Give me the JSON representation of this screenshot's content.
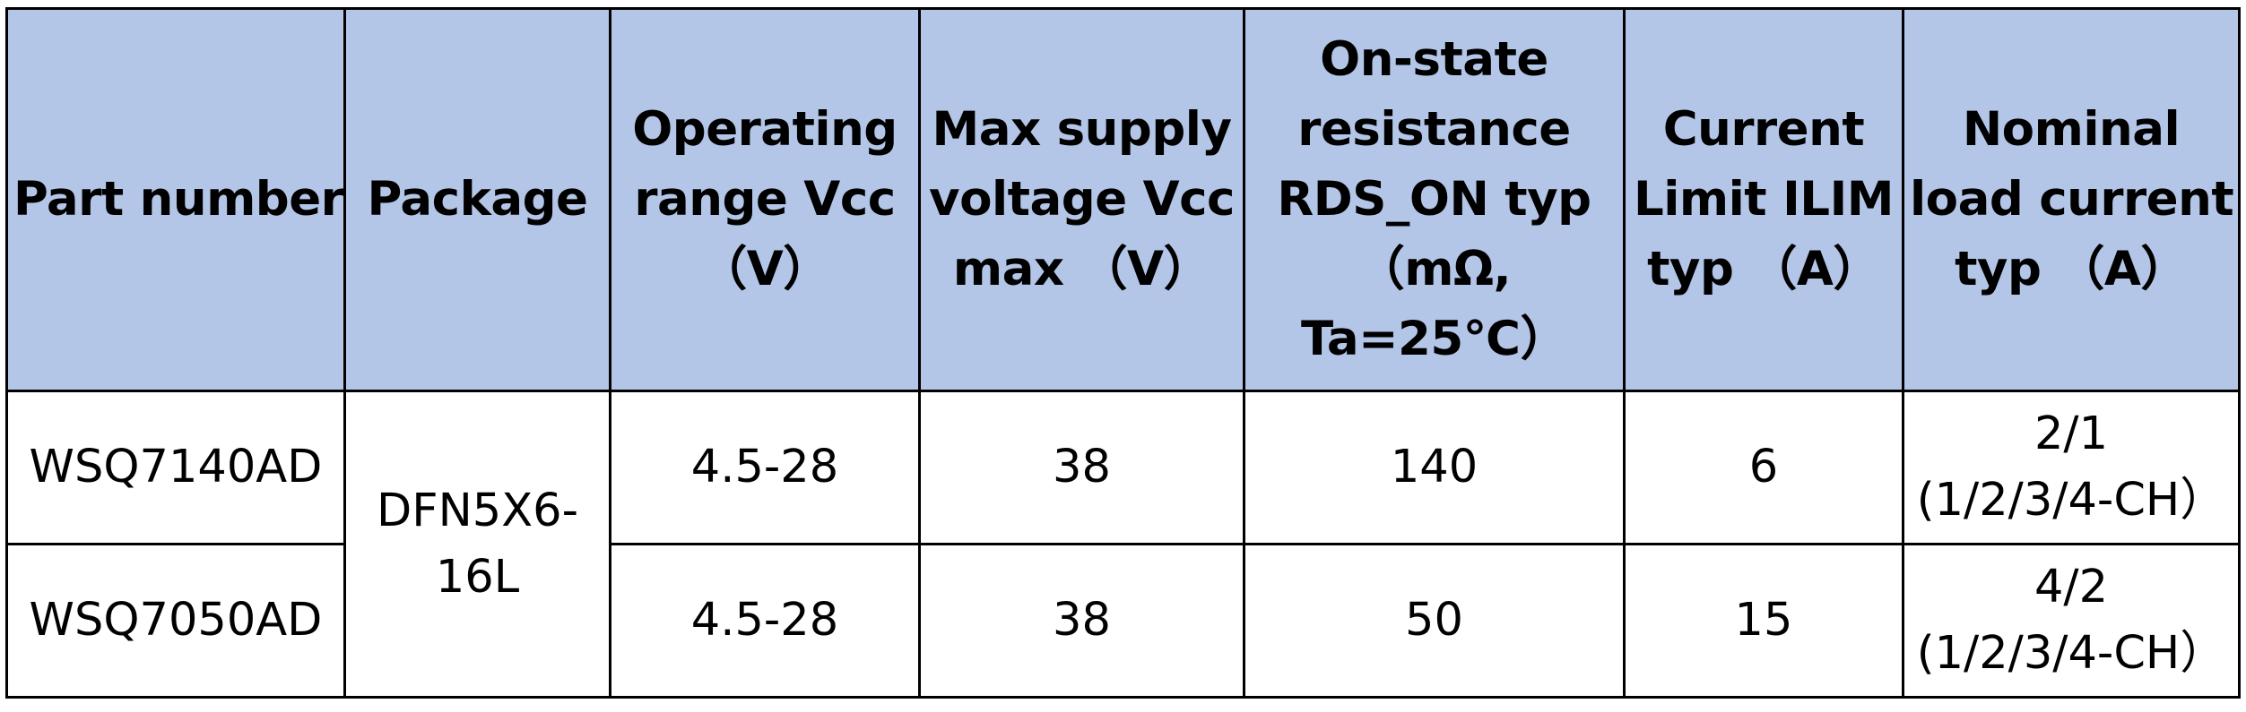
{
  "table": {
    "headers": [
      [
        "Part number"
      ],
      [
        "Package"
      ],
      [
        "Operating",
        "range Vcc",
        "（V）"
      ],
      [
        "Max supply",
        "voltage Vcc",
        "max （V）"
      ],
      [
        "On-state",
        "resistance",
        "RDS_ON typ",
        "（mΩ,",
        "Ta=25℃）"
      ],
      [
        "Current",
        "Limit ILIM",
        "typ （A）"
      ],
      [
        "Nominal",
        "load current",
        "typ （A）"
      ]
    ],
    "package_shared": [
      "DFN5X6-",
      "16L"
    ],
    "rows": [
      {
        "part_number": "WSQ7140AD",
        "operating_range": "4.5-28",
        "max_supply": "38",
        "rds_on": "140",
        "current_limit": "6",
        "nominal_load": [
          "2/1",
          "(1/2/3/4-CH）"
        ]
      },
      {
        "part_number": "WSQ7050AD",
        "operating_range": "4.5-28",
        "max_supply": "38",
        "rds_on": "50",
        "current_limit": "15",
        "nominal_load": [
          "4/2",
          "(1/2/3/4-CH）"
        ]
      }
    ]
  },
  "colors": {
    "header_background": "#b4c6e7",
    "body_background": "#ffffff",
    "border": "#000000"
  }
}
